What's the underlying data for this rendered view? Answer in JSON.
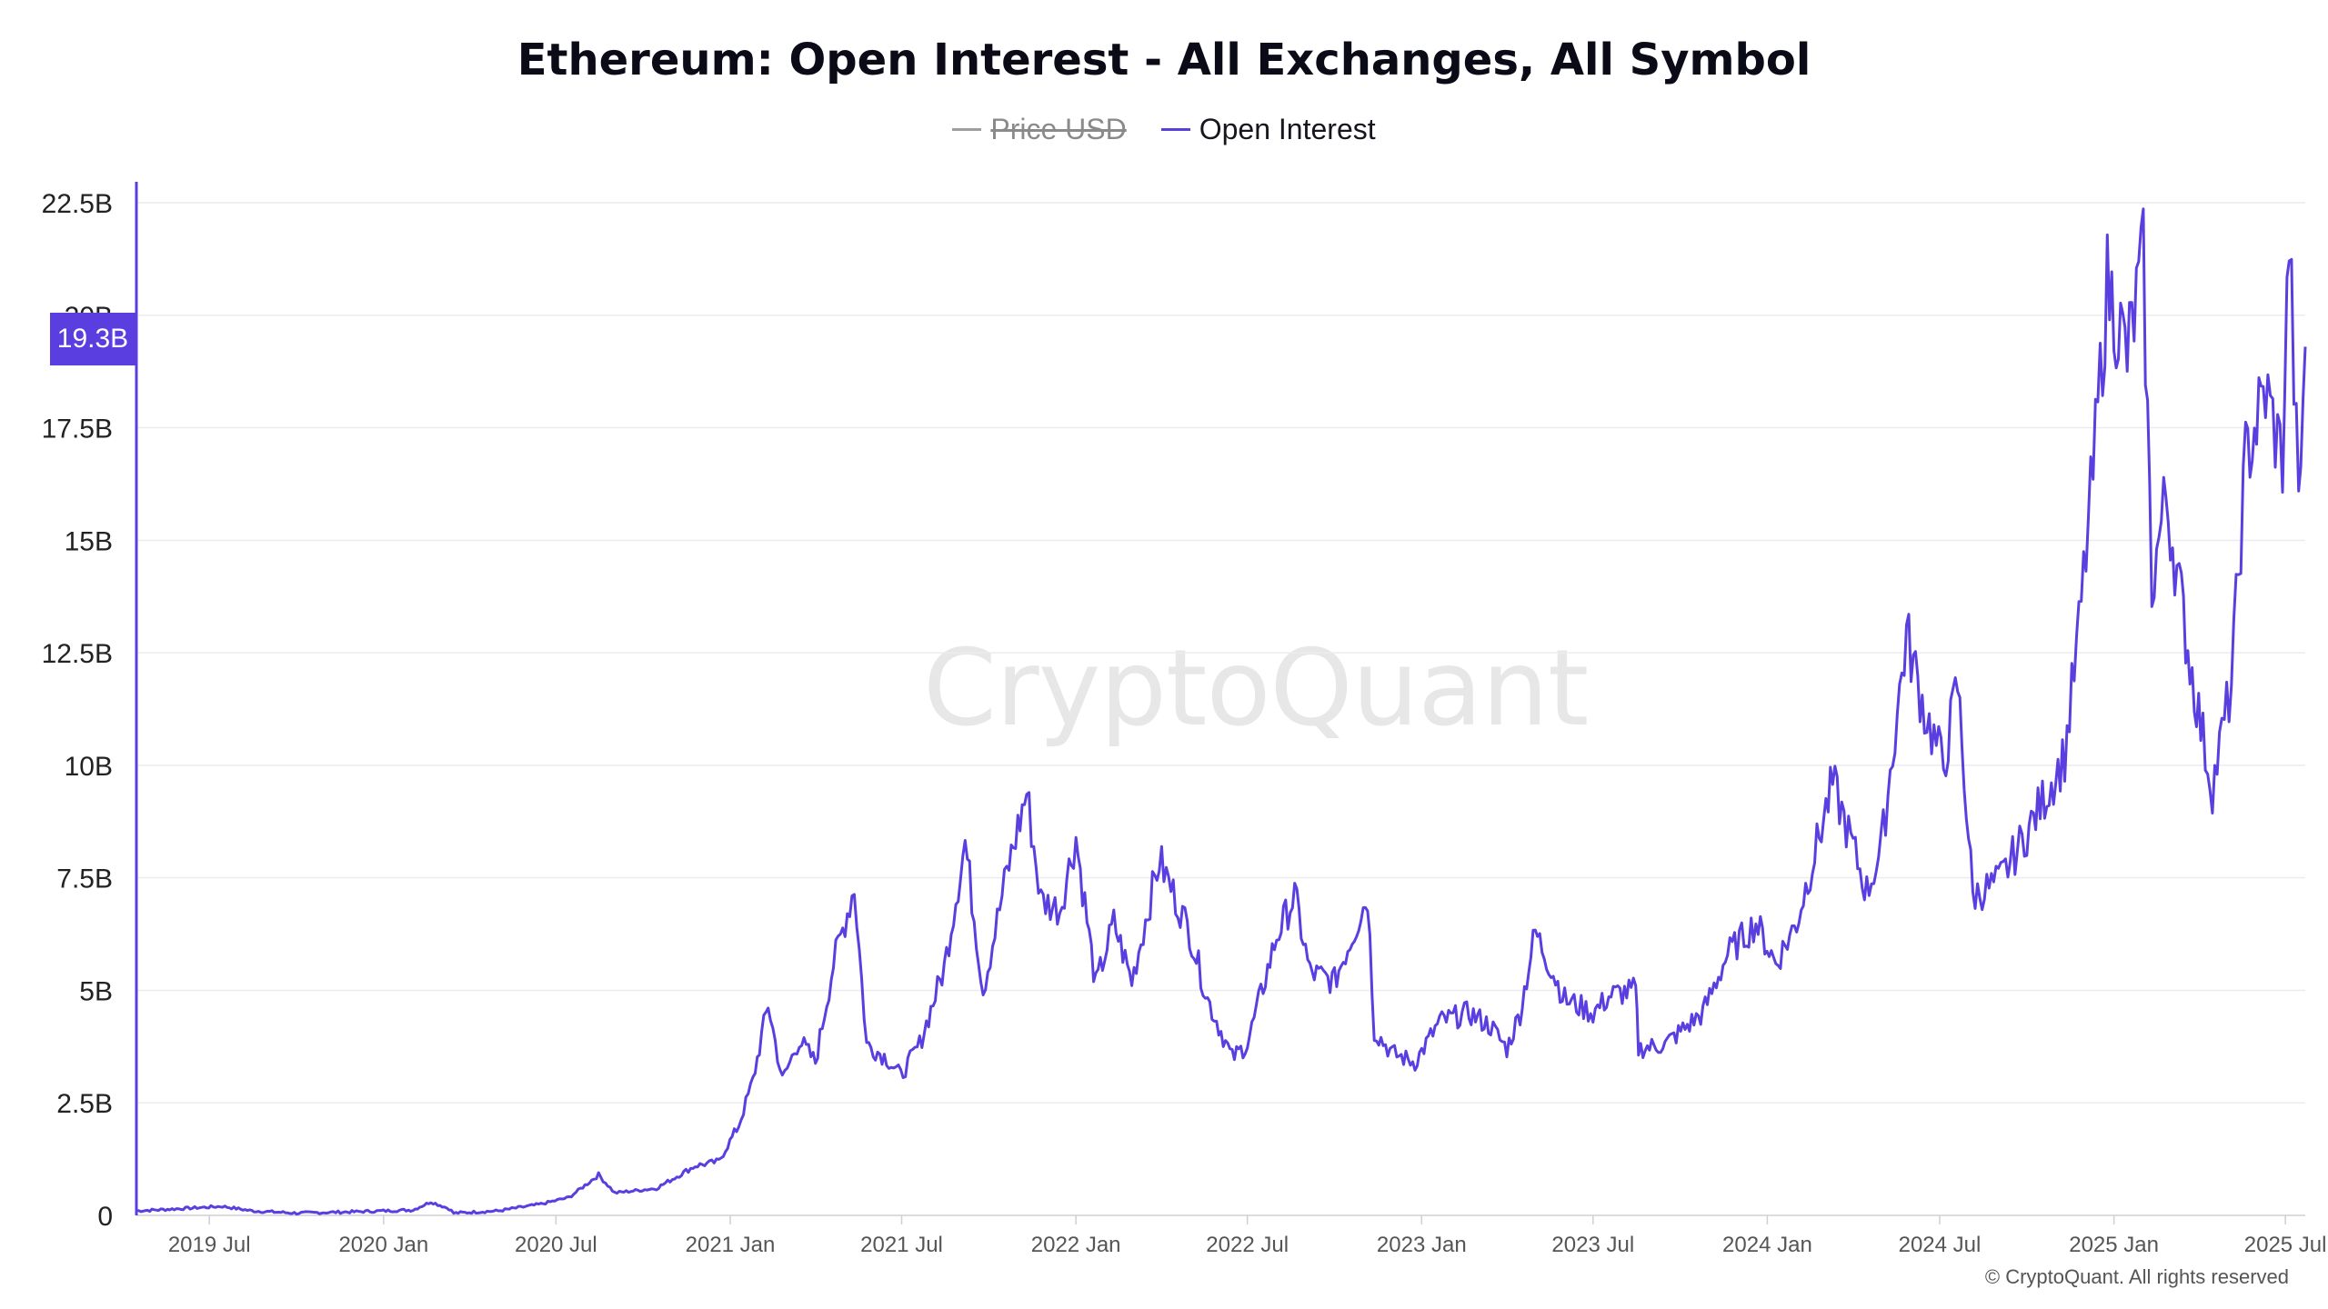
{
  "chart_data": {
    "type": "line",
    "title": "Ethereum: Open Interest - All Exchanges, All Symbol",
    "legend": [
      {
        "name": "Price USD",
        "color": "#9e9e9e",
        "hidden": true
      },
      {
        "name": "Open Interest",
        "color": "#5b3ee0",
        "hidden": false
      }
    ],
    "y_tick_labels": [
      "0",
      "2.5B",
      "5B",
      "7.5B",
      "10B",
      "12.5B",
      "15B",
      "17.5B",
      "20B",
      "22.5B"
    ],
    "ylim": [
      0,
      22.5
    ],
    "y_unit": "B",
    "x_tick_labels": [
      "2019 Jul",
      "2020 Jan",
      "2020 Jul",
      "2021 Jan",
      "2021 Jul",
      "2022 Jan",
      "2022 Jul",
      "2023 Jan",
      "2023 Jul",
      "2024 Jan",
      "2024 Jul",
      "2025 Jan",
      "2025 Jul"
    ],
    "xlim": [
      "2019-04-15",
      "2025-07-22"
    ],
    "current_value_label": "19.3B",
    "series": [
      {
        "name": "Open Interest",
        "color": "#5b3ee0",
        "points": [
          [
            "2019-04-15",
            0.1
          ],
          [
            "2019-06-01",
            0.15
          ],
          [
            "2019-07-15",
            0.2
          ],
          [
            "2019-08-15",
            0.1
          ],
          [
            "2019-10-01",
            0.05
          ],
          [
            "2019-12-01",
            0.08
          ],
          [
            "2020-02-01",
            0.12
          ],
          [
            "2020-02-20",
            0.3
          ],
          [
            "2020-03-10",
            0.15
          ],
          [
            "2020-03-15",
            0.05
          ],
          [
            "2020-05-01",
            0.1
          ],
          [
            "2020-06-15",
            0.25
          ],
          [
            "2020-07-15",
            0.4
          ],
          [
            "2020-08-15",
            0.9
          ],
          [
            "2020-09-01",
            0.5
          ],
          [
            "2020-10-15",
            0.6
          ],
          [
            "2020-11-25",
            1.1
          ],
          [
            "2020-12-20",
            1.2
          ],
          [
            "2021-01-10",
            2.0
          ],
          [
            "2021-01-25",
            3.0
          ],
          [
            "2021-02-10",
            4.7
          ],
          [
            "2021-02-25",
            3.0
          ],
          [
            "2021-03-15",
            3.9
          ],
          [
            "2021-04-01",
            3.4
          ],
          [
            "2021-04-20",
            5.6
          ],
          [
            "2021-05-12",
            7.3
          ],
          [
            "2021-05-25",
            3.8
          ],
          [
            "2021-06-15",
            3.5
          ],
          [
            "2021-06-30",
            3.1
          ],
          [
            "2021-07-20",
            3.8
          ],
          [
            "2021-08-15",
            5.5
          ],
          [
            "2021-09-06",
            8.3
          ],
          [
            "2021-09-25",
            5.0
          ],
          [
            "2021-10-20",
            7.6
          ],
          [
            "2021-11-10",
            9.4
          ],
          [
            "2021-11-25",
            7.0
          ],
          [
            "2021-12-15",
            6.8
          ],
          [
            "2022-01-01",
            8.4
          ],
          [
            "2022-01-22",
            5.1
          ],
          [
            "2022-02-10",
            6.5
          ],
          [
            "2022-03-01",
            5.2
          ],
          [
            "2022-03-30",
            7.9
          ],
          [
            "2022-05-01",
            6.3
          ],
          [
            "2022-05-20",
            4.8
          ],
          [
            "2022-06-15",
            3.5
          ],
          [
            "2022-07-01",
            3.8
          ],
          [
            "2022-08-01",
            6.2
          ],
          [
            "2022-08-20",
            7.1
          ],
          [
            "2022-09-05",
            5.4
          ],
          [
            "2022-10-01",
            5.2
          ],
          [
            "2022-11-05",
            7.1
          ],
          [
            "2022-11-12",
            4.1
          ],
          [
            "2022-12-01",
            3.6
          ],
          [
            "2022-12-25",
            3.4
          ],
          [
            "2023-01-20",
            4.3
          ],
          [
            "2023-02-20",
            4.5
          ],
          [
            "2023-03-15",
            4.2
          ],
          [
            "2023-04-01",
            3.7
          ],
          [
            "2023-04-15",
            4.5
          ],
          [
            "2023-05-01",
            6.3
          ],
          [
            "2023-06-01",
            4.8
          ],
          [
            "2023-07-01",
            4.5
          ],
          [
            "2023-07-20",
            4.9
          ],
          [
            "2023-08-15",
            5.0
          ],
          [
            "2023-08-18",
            3.7
          ],
          [
            "2023-09-15",
            3.8
          ],
          [
            "2023-10-25",
            4.5
          ],
          [
            "2023-11-20",
            5.8
          ],
          [
            "2023-12-20",
            6.5
          ],
          [
            "2024-01-10",
            5.6
          ],
          [
            "2024-02-01",
            6.5
          ],
          [
            "2024-03-10",
            9.6
          ],
          [
            "2024-04-15",
            7.2
          ],
          [
            "2024-04-30",
            8.1
          ],
          [
            "2024-05-27",
            12.9
          ],
          [
            "2024-06-15",
            11.2
          ],
          [
            "2024-07-05",
            10.0
          ],
          [
            "2024-07-20",
            11.8
          ],
          [
            "2024-08-05",
            7.1
          ],
          [
            "2024-09-01",
            7.4
          ],
          [
            "2024-10-01",
            8.5
          ],
          [
            "2024-11-10",
            10.2
          ],
          [
            "2024-11-25",
            13.0
          ],
          [
            "2024-12-10",
            16.5
          ],
          [
            "2024-12-25",
            20.7
          ],
          [
            "2025-01-15",
            19.1
          ],
          [
            "2025-02-01",
            21.2
          ],
          [
            "2025-02-10",
            14.0
          ],
          [
            "2025-02-25",
            16.0
          ],
          [
            "2025-03-20",
            12.6
          ],
          [
            "2025-04-05",
            10.6
          ],
          [
            "2025-04-15",
            9.5
          ],
          [
            "2025-05-05",
            11.8
          ],
          [
            "2025-05-20",
            16.8
          ],
          [
            "2025-06-10",
            18.3
          ],
          [
            "2025-06-28",
            16.8
          ],
          [
            "2025-07-05",
            21.8
          ],
          [
            "2025-07-15",
            15.6
          ],
          [
            "2025-07-22",
            19.3
          ]
        ]
      }
    ]
  },
  "watermark": "CryptoQuant",
  "copyright": "© CryptoQuant. All rights reserved",
  "colors": {
    "accent": "#5b3ee0",
    "grid": "#ececf0",
    "badge_bg": "#5b3ee0"
  }
}
